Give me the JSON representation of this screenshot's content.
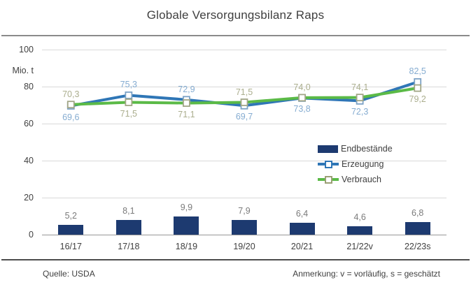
{
  "title": "Globale Versorgungsbilanz Raps",
  "footer": {
    "source": "Quelle: USDA",
    "note": "Anmerkung: v = vorläufig, s = geschätzt"
  },
  "chart_data": {
    "type": "combo-bar-line",
    "title": "Globale Versorgungsbilanz Raps",
    "categories": [
      "16/17",
      "17/18",
      "18/19",
      "19/20",
      "20/21",
      "21/22v",
      "22/23s"
    ],
    "ylabel": "Mio. t",
    "ylim": [
      0,
      100
    ],
    "yticks": [
      0,
      20,
      40,
      60,
      80,
      100
    ],
    "grid": "horizontal",
    "legend_position": "middle-right",
    "colors": {
      "gridline": "#d9d9d9",
      "axis_line": "#969696",
      "axis_text": "#404040"
    },
    "series": [
      {
        "name": "Endbestände",
        "type": "bar",
        "color": "#1d3a70",
        "label_color": "#7b7b7b",
        "values": [
          5.2,
          8.1,
          9.9,
          7.9,
          6.4,
          4.6,
          6.8
        ],
        "labels": [
          "5,2",
          "8,1",
          "9,9",
          "7,9",
          "6,4",
          "4,6",
          "6,8"
        ]
      },
      {
        "name": "Erzeugung",
        "type": "line",
        "color": "#2f76b6",
        "marker_color": "#7ca2c6",
        "legend_marker_color": "#2f76b6",
        "label_color": "#85acd1",
        "values": [
          69.6,
          75.3,
          72.9,
          69.7,
          73.8,
          72.3,
          82.5
        ],
        "labels": [
          "69,6",
          "75,3",
          "72,9",
          "69,7",
          "73,8",
          "72,3",
          "82,5"
        ],
        "label_side": [
          "below",
          "above",
          "above",
          "below",
          "below",
          "below",
          "above"
        ]
      },
      {
        "name": "Verbrauch",
        "type": "line",
        "color": "#5bba47",
        "marker_color": "#a2a687",
        "legend_marker_color": "#9ba075",
        "label_color": "#abae8e",
        "values": [
          70.3,
          71.5,
          71.1,
          71.5,
          74.0,
          74.1,
          79.2
        ],
        "labels": [
          "70,3",
          "71,5",
          "71,1",
          "71,5",
          "74,0",
          "74,1",
          "79,2"
        ],
        "label_side": [
          "above",
          "below",
          "below",
          "above",
          "above",
          "above",
          "below"
        ]
      }
    ]
  }
}
